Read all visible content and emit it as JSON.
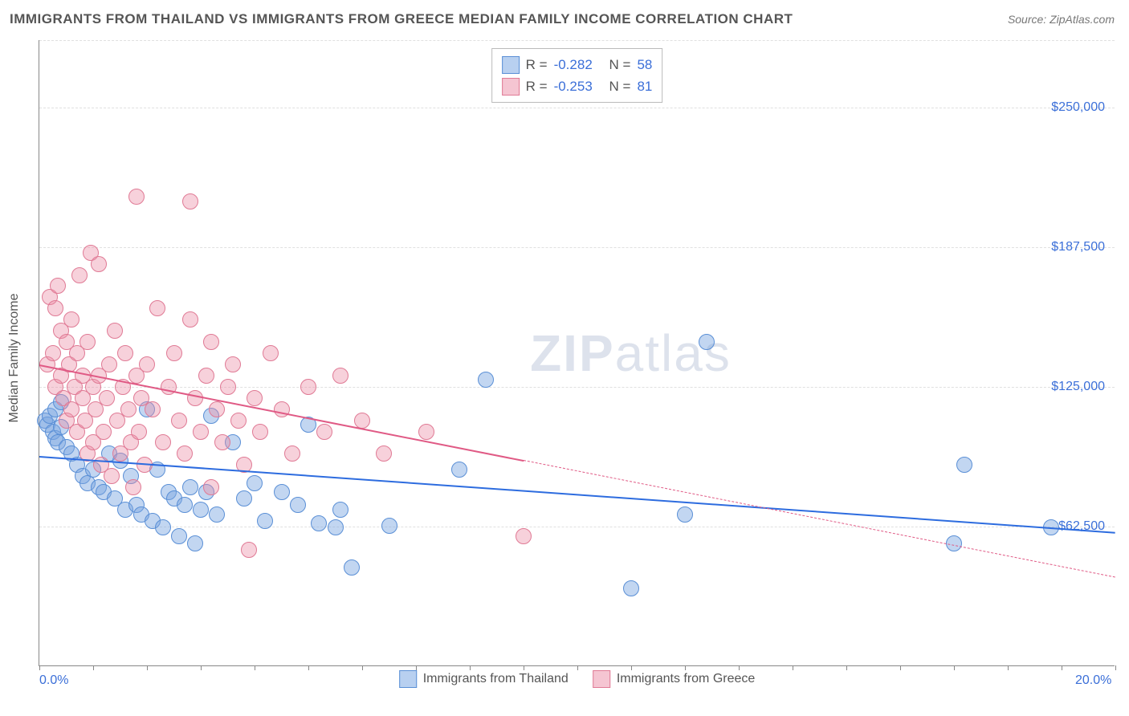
{
  "title": "IMMIGRANTS FROM THAILAND VS IMMIGRANTS FROM GREECE MEDIAN FAMILY INCOME CORRELATION CHART",
  "source": "Source: ZipAtlas.com",
  "watermark_zip": "ZIP",
  "watermark_atlas": "atlas",
  "ylabel": "Median Family Income",
  "chart": {
    "type": "scatter",
    "xlim": [
      0,
      20
    ],
    "ylim": [
      0,
      280000
    ],
    "x_ticks_minor": [
      0,
      1,
      2,
      3,
      4,
      5,
      6,
      7,
      8,
      9,
      10,
      11,
      12,
      13,
      14,
      15,
      16,
      17,
      18,
      19,
      20
    ],
    "x_tick_labels": [
      {
        "x": 0,
        "label": "0.0%"
      },
      {
        "x": 20,
        "label": "20.0%"
      }
    ],
    "y_gridlines": [
      62500,
      125000,
      187500,
      250000,
      280000
    ],
    "y_tick_labels": [
      {
        "y": 62500,
        "label": "$62,500"
      },
      {
        "y": 125000,
        "label": "$125,000"
      },
      {
        "y": 187500,
        "label": "$187,500"
      },
      {
        "y": 250000,
        "label": "$250,000"
      }
    ],
    "background_color": "#ffffff",
    "grid_color": "#e0e0e0",
    "axis_color": "#888888",
    "marker_radius": 10,
    "marker_opacity": 0.55,
    "series": [
      {
        "id": "thailand",
        "label": "Immigrants from Thailand",
        "color_fill": "rgba(120,165,225,0.45)",
        "color_stroke": "#5a8fd6",
        "swatch_fill": "#b8d0f0",
        "swatch_border": "#5a8fd6",
        "R": "-0.282",
        "N": "58",
        "trend": {
          "x1": 0,
          "y1": 94000,
          "x2": 20,
          "y2": 60000,
          "solid_to_x": 20,
          "color": "#2d6cdf"
        },
        "points": [
          [
            0.1,
            110000
          ],
          [
            0.15,
            108000
          ],
          [
            0.2,
            112000
          ],
          [
            0.25,
            105000
          ],
          [
            0.3,
            115000
          ],
          [
            0.3,
            102000
          ],
          [
            0.35,
            100000
          ],
          [
            0.4,
            118000
          ],
          [
            0.4,
            107000
          ],
          [
            0.5,
            98000
          ],
          [
            0.6,
            95000
          ],
          [
            0.7,
            90000
          ],
          [
            0.8,
            85000
          ],
          [
            0.9,
            82000
          ],
          [
            1.0,
            88000
          ],
          [
            1.1,
            80000
          ],
          [
            1.2,
            78000
          ],
          [
            1.3,
            95000
          ],
          [
            1.4,
            75000
          ],
          [
            1.5,
            92000
          ],
          [
            1.6,
            70000
          ],
          [
            1.7,
            85000
          ],
          [
            1.8,
            72000
          ],
          [
            1.9,
            68000
          ],
          [
            2.0,
            115000
          ],
          [
            2.1,
            65000
          ],
          [
            2.2,
            88000
          ],
          [
            2.3,
            62000
          ],
          [
            2.4,
            78000
          ],
          [
            2.5,
            75000
          ],
          [
            2.6,
            58000
          ],
          [
            2.7,
            72000
          ],
          [
            2.8,
            80000
          ],
          [
            2.9,
            55000
          ],
          [
            3.0,
            70000
          ],
          [
            3.1,
            78000
          ],
          [
            3.2,
            112000
          ],
          [
            3.3,
            68000
          ],
          [
            3.6,
            100000
          ],
          [
            3.8,
            75000
          ],
          [
            4.0,
            82000
          ],
          [
            4.2,
            65000
          ],
          [
            4.5,
            78000
          ],
          [
            4.8,
            72000
          ],
          [
            5.0,
            108000
          ],
          [
            5.2,
            64000
          ],
          [
            5.5,
            62000
          ],
          [
            5.6,
            70000
          ],
          [
            5.8,
            44000
          ],
          [
            6.5,
            63000
          ],
          [
            7.8,
            88000
          ],
          [
            8.3,
            128000
          ],
          [
            11.0,
            35000
          ],
          [
            12.0,
            68000
          ],
          [
            12.4,
            145000
          ],
          [
            17.0,
            55000
          ],
          [
            17.2,
            90000
          ],
          [
            18.8,
            62000
          ]
        ]
      },
      {
        "id": "greece",
        "label": "Immigrants from Greece",
        "color_fill": "rgba(235,140,165,0.4)",
        "color_stroke": "#e07a95",
        "swatch_fill": "#f5c5d2",
        "swatch_border": "#e07a95",
        "R": "-0.253",
        "N": "81",
        "trend": {
          "x1": 0,
          "y1": 135000,
          "x2": 20,
          "y2": 40000,
          "solid_to_x": 9,
          "color": "#e05a85"
        },
        "points": [
          [
            0.15,
            135000
          ],
          [
            0.2,
            165000
          ],
          [
            0.25,
            140000
          ],
          [
            0.3,
            125000
          ],
          [
            0.3,
            160000
          ],
          [
            0.35,
            170000
          ],
          [
            0.4,
            130000
          ],
          [
            0.4,
            150000
          ],
          [
            0.45,
            120000
          ],
          [
            0.5,
            145000
          ],
          [
            0.5,
            110000
          ],
          [
            0.55,
            135000
          ],
          [
            0.6,
            155000
          ],
          [
            0.6,
            115000
          ],
          [
            0.65,
            125000
          ],
          [
            0.7,
            140000
          ],
          [
            0.7,
            105000
          ],
          [
            0.75,
            175000
          ],
          [
            0.8,
            120000
          ],
          [
            0.8,
            130000
          ],
          [
            0.85,
            110000
          ],
          [
            0.9,
            95000
          ],
          [
            0.9,
            145000
          ],
          [
            0.95,
            185000
          ],
          [
            1.0,
            125000
          ],
          [
            1.0,
            100000
          ],
          [
            1.05,
            115000
          ],
          [
            1.1,
            180000
          ],
          [
            1.1,
            130000
          ],
          [
            1.15,
            90000
          ],
          [
            1.2,
            105000
          ],
          [
            1.25,
            120000
          ],
          [
            1.3,
            135000
          ],
          [
            1.35,
            85000
          ],
          [
            1.4,
            150000
          ],
          [
            1.45,
            110000
          ],
          [
            1.5,
            95000
          ],
          [
            1.55,
            125000
          ],
          [
            1.6,
            140000
          ],
          [
            1.65,
            115000
          ],
          [
            1.7,
            100000
          ],
          [
            1.75,
            80000
          ],
          [
            1.8,
            210000
          ],
          [
            1.8,
            130000
          ],
          [
            1.85,
            105000
          ],
          [
            1.9,
            120000
          ],
          [
            1.95,
            90000
          ],
          [
            2.0,
            135000
          ],
          [
            2.1,
            115000
          ],
          [
            2.2,
            160000
          ],
          [
            2.3,
            100000
          ],
          [
            2.4,
            125000
          ],
          [
            2.5,
            140000
          ],
          [
            2.6,
            110000
          ],
          [
            2.7,
            95000
          ],
          [
            2.8,
            155000
          ],
          [
            2.8,
            208000
          ],
          [
            2.9,
            120000
          ],
          [
            3.0,
            105000
          ],
          [
            3.1,
            130000
          ],
          [
            3.2,
            145000
          ],
          [
            3.2,
            80000
          ],
          [
            3.3,
            115000
          ],
          [
            3.4,
            100000
          ],
          [
            3.5,
            125000
          ],
          [
            3.6,
            135000
          ],
          [
            3.7,
            110000
          ],
          [
            3.8,
            90000
          ],
          [
            3.9,
            52000
          ],
          [
            4.0,
            120000
          ],
          [
            4.1,
            105000
          ],
          [
            4.3,
            140000
          ],
          [
            4.5,
            115000
          ],
          [
            4.7,
            95000
          ],
          [
            5.0,
            125000
          ],
          [
            5.3,
            105000
          ],
          [
            5.6,
            130000
          ],
          [
            6.0,
            110000
          ],
          [
            6.4,
            95000
          ],
          [
            7.2,
            105000
          ],
          [
            9.0,
            58000
          ]
        ]
      }
    ]
  },
  "stat_labels": {
    "R": "R =",
    "N": "N ="
  }
}
